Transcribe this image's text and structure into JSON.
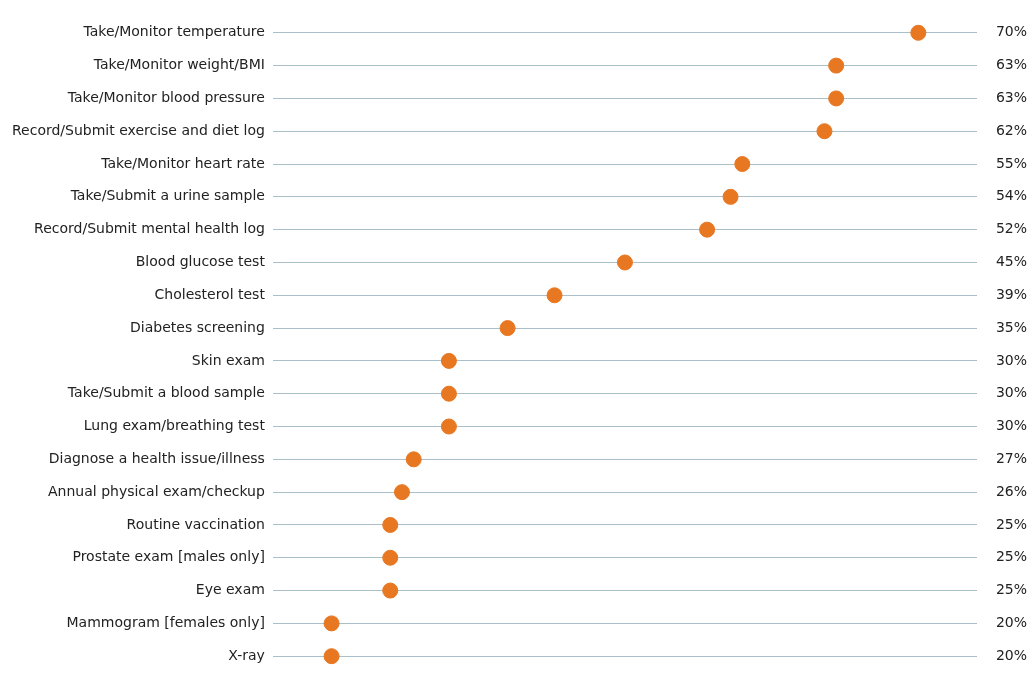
{
  "chart_data": {
    "type": "scatter",
    "orientation": "horizontal",
    "marker": "circle",
    "grid": "y",
    "legend": false,
    "tick_labels": "y",
    "color": "#e87722",
    "categories": [
      "Take/Monitor temperature",
      "Take/Monitor weight/BMI",
      "Take/Monitor blood pressure",
      "Record/Submit exercise and diet log",
      "Take/Monitor heart rate",
      "Take/Submit a urine sample",
      "Record/Submit mental health log",
      "Blood glucose test",
      "Cholesterol test",
      "Diabetes screening",
      "Skin exam",
      "Take/Submit a blood sample",
      "Lung exam/breathing test",
      "Diagnose a health issue/illness",
      "Annual physical exam/checkup",
      "Routine vaccination",
      "Prostate exam [males only]",
      "Eye exam",
      "Mammogram [females only]",
      "X-ray"
    ],
    "values": [
      70,
      63,
      63,
      62,
      55,
      54,
      52,
      45,
      39,
      35,
      30,
      30,
      30,
      27,
      26,
      25,
      25,
      25,
      20,
      20
    ],
    "value_labels": [
      "70%",
      "63%",
      "63%",
      "62%",
      "55%",
      "54%",
      "52%",
      "45%",
      "39%",
      "35%",
      "30%",
      "30%",
      "30%",
      "27%",
      "26%",
      "25%",
      "25%",
      "25%",
      "20%",
      "20%"
    ]
  }
}
